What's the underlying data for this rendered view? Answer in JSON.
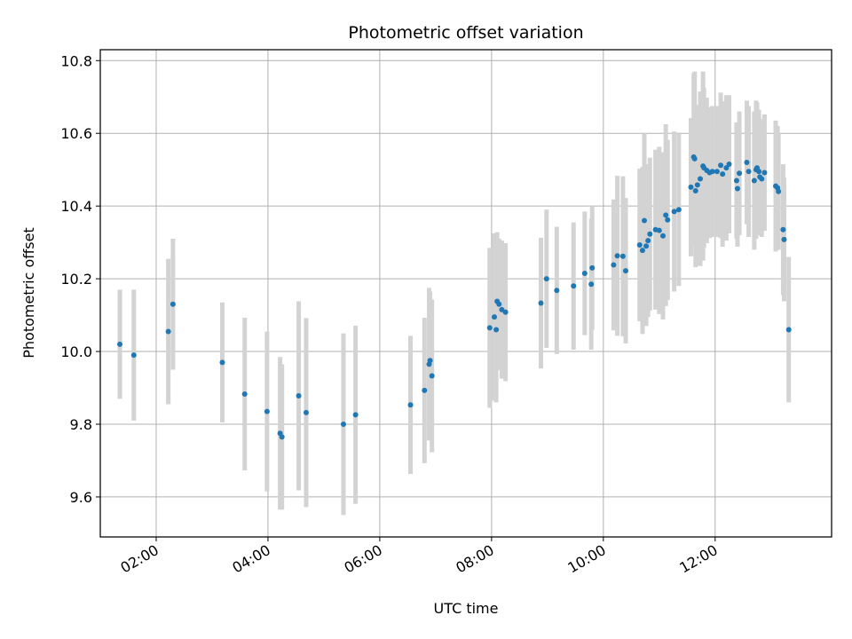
{
  "chart_data": {
    "type": "scatter",
    "title": "Photometric offset variation",
    "xlabel": "UTC time",
    "ylabel": "Photometric offset",
    "x_tick_labels": [
      "02:00",
      "04:00",
      "06:00",
      "08:00",
      "10:00",
      "12:00"
    ],
    "y_tick_labels": [
      "9.6",
      "9.8",
      "10.0",
      "10.2",
      "10.4",
      "10.6",
      "10.8"
    ],
    "ylim": [
      9.49,
      10.83
    ],
    "xlim": [
      "01:00",
      "14:05"
    ],
    "grid": true,
    "colors": {
      "points": "#1f77b4",
      "errorbars": "#d3d3d3",
      "grid": "#b0b0b0"
    },
    "series": [
      {
        "x": [
          "01:21",
          "01:36",
          "02:13",
          "02:18",
          "03:11",
          "03:35",
          "03:59",
          "04:13",
          "04:15",
          "04:33",
          "04:41",
          "05:21",
          "05:34",
          "06:33",
          "06:48",
          "06:53",
          "06:54",
          "06:56",
          "07:58",
          "08:03",
          "08:05",
          "08:06",
          "08:08",
          "08:11",
          "08:15",
          "08:53",
          "08:59",
          "09:10",
          "09:28",
          "09:40",
          "09:47",
          "09:48",
          "10:11",
          "10:15",
          "10:21",
          "10:24",
          "10:39",
          "10:42",
          "10:44",
          "10:46",
          "10:48",
          "10:50",
          "10:56",
          "11:00",
          "11:04",
          "11:07",
          "11:09",
          "11:16",
          "11:21",
          "11:34",
          "11:37",
          "11:38",
          "11:39",
          "11:41",
          "11:44",
          "11:47",
          "11:48",
          "11:51",
          "11:54",
          "11:57",
          "12:02",
          "12:06",
          "12:08",
          "12:12",
          "12:15",
          "12:23",
          "12:24",
          "12:26",
          "12:34",
          "12:36",
          "12:42",
          "12:44",
          "12:45",
          "12:47",
          "12:48",
          "12:50",
          "12:53",
          "13:05",
          "13:07",
          "13:08",
          "13:13",
          "13:14",
          "13:19"
        ],
        "y": [
          10.02,
          9.99,
          10.055,
          10.13,
          9.97,
          9.883,
          9.835,
          9.775,
          9.765,
          9.878,
          9.832,
          9.8,
          9.826,
          9.853,
          9.893,
          9.965,
          9.975,
          9.933,
          10.065,
          10.095,
          10.06,
          10.138,
          10.13,
          10.115,
          10.108,
          10.133,
          10.2,
          10.168,
          10.18,
          10.215,
          10.185,
          10.23,
          10.238,
          10.263,
          10.262,
          10.222,
          10.293,
          10.278,
          10.36,
          10.29,
          10.305,
          10.323,
          10.335,
          10.333,
          10.318,
          10.375,
          10.362,
          10.385,
          10.39,
          10.452,
          10.535,
          10.53,
          10.442,
          10.458,
          10.475,
          10.51,
          10.505,
          10.498,
          10.492,
          10.495,
          10.495,
          10.512,
          10.488,
          10.505,
          10.515,
          10.47,
          10.448,
          10.49,
          10.52,
          10.495,
          10.47,
          10.5,
          10.505,
          10.495,
          10.48,
          10.475,
          10.492,
          10.455,
          10.45,
          10.44,
          10.335,
          10.308,
          10.06
        ],
        "yerr": [
          0.15,
          0.18,
          0.2,
          0.18,
          0.165,
          0.21,
          0.22,
          0.21,
          0.2,
          0.26,
          0.26,
          0.25,
          0.245,
          0.19,
          0.2,
          0.21,
          0.19,
          0.21,
          0.22,
          0.23,
          0.2,
          0.19,
          0.18,
          0.19,
          0.19,
          0.18,
          0.19,
          0.175,
          0.175,
          0.17,
          0.18,
          0.17,
          0.18,
          0.22,
          0.22,
          0.2,
          0.21,
          0.23,
          0.24,
          0.22,
          0.21,
          0.21,
          0.22,
          0.23,
          0.23,
          0.25,
          0.22,
          0.22,
          0.21,
          0.19,
          0.23,
          0.24,
          0.21,
          0.22,
          0.24,
          0.26,
          0.22,
          0.2,
          0.18,
          0.18,
          0.18,
          0.2,
          0.2,
          0.2,
          0.19,
          0.16,
          0.16,
          0.17,
          0.17,
          0.18,
          0.19,
          0.19,
          0.18,
          0.17,
          0.16,
          0.16,
          0.16,
          0.18,
          0.17,
          0.16,
          0.18,
          0.17,
          0.2
        ]
      }
    ]
  }
}
